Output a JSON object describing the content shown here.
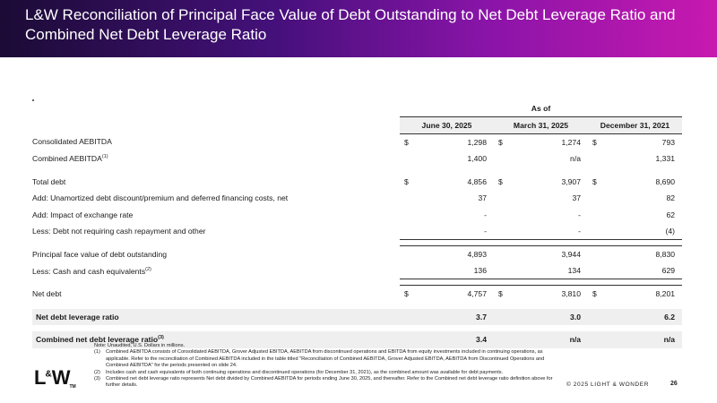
{
  "header": {
    "title": "L&W Reconciliation of Principal Face Value of Debt Outstanding to Net Debt Leverage Ratio and Combined Net Debt Leverage Ratio"
  },
  "table": {
    "as_of": "As of",
    "columns": [
      "June 30, 2025",
      "March 31, 2025",
      "December 31, 2021"
    ],
    "rows": [
      {
        "label": "Consolidated AEBITDA",
        "sup": "",
        "cur": [
          "$",
          "$",
          "$"
        ],
        "values": [
          "1,298",
          "1,274",
          "793"
        ]
      },
      {
        "label": "Combined AEBITDA",
        "sup": "(1)",
        "cur": [
          "",
          "",
          ""
        ],
        "values": [
          "1,400",
          "n/a",
          "1,331"
        ]
      },
      {
        "label": "Total debt",
        "sup": "",
        "cur": [
          "$",
          "$",
          "$"
        ],
        "values": [
          "4,856",
          "3,907",
          "8,690"
        ]
      },
      {
        "label": "Add: Unamortized debt discount/premium and deferred financing costs, net",
        "sup": "",
        "cur": [
          "",
          "",
          ""
        ],
        "values": [
          "37",
          "37",
          "82"
        ]
      },
      {
        "label": "Add: Impact of exchange rate",
        "sup": "",
        "cur": [
          "",
          "",
          ""
        ],
        "values": [
          "-",
          "-",
          "62"
        ]
      },
      {
        "label": "Less: Debt not requiring cash repayment and other",
        "sup": "",
        "cur": [
          "",
          "",
          ""
        ],
        "values": [
          "-",
          "-",
          "(4)"
        ]
      },
      {
        "label": "Principal face value of debt outstanding",
        "sup": "",
        "cur": [
          "",
          "",
          ""
        ],
        "values": [
          "4,893",
          "3,944",
          "8,830"
        ]
      },
      {
        "label": "Less: Cash and cash equivalents",
        "sup": "(2)",
        "cur": [
          "",
          "",
          ""
        ],
        "values": [
          "136",
          "134",
          "629"
        ]
      },
      {
        "label": "Net debt",
        "sup": "",
        "cur": [
          "$",
          "$",
          "$"
        ],
        "values": [
          "4,757",
          "3,810",
          "8,201"
        ]
      }
    ],
    "ratios": [
      {
        "label": "Net debt leverage ratio",
        "sup": "",
        "values": [
          "3.7",
          "3.0",
          "6.2"
        ]
      },
      {
        "label": "Combined net debt leverage ratio",
        "sup": "(3)",
        "values": [
          "3.4",
          "n/a",
          "n/a"
        ]
      }
    ]
  },
  "notes": {
    "intro": "Note: Unaudited, U.S. Dollars in millions.",
    "items": [
      {
        "key": "(1)",
        "text": "Combined AEBITDA consists of Consolidated AEBITDA, Grover Adjusted EBITDA, AEBITDA from discontinued operations and EBITDA from equity investments included in continuing operations, as applicable. Refer to the reconciliation of Combined AEBITDA included in the table titled \"Reconciliation of Combined AEBITDA, Grover Adjusted EBITDA, AEBITDA from Discontinued Operations and Combined AEBITDA\" for the periods presented on slide 24."
      },
      {
        "key": "(2)",
        "text": "Includes cash and cash equivalents of both continuing operations and discontinued operations (for December 31, 2021), as the combined amount was available for debt payments."
      },
      {
        "key": "(3)",
        "text": "Combined net debt leverage ratio represents Net debt divided by Combined AEBITDA for periods ending June 30, 2025, and thereafter. Refer to the Combined net debt leverage ratio definition above for further details."
      }
    ]
  },
  "footer": {
    "logo_main": "L",
    "logo_amp": "&",
    "logo_end": "W",
    "logo_tm": "TM",
    "copyright": "© 2025 LIGHT & WONDER",
    "page": "26"
  }
}
